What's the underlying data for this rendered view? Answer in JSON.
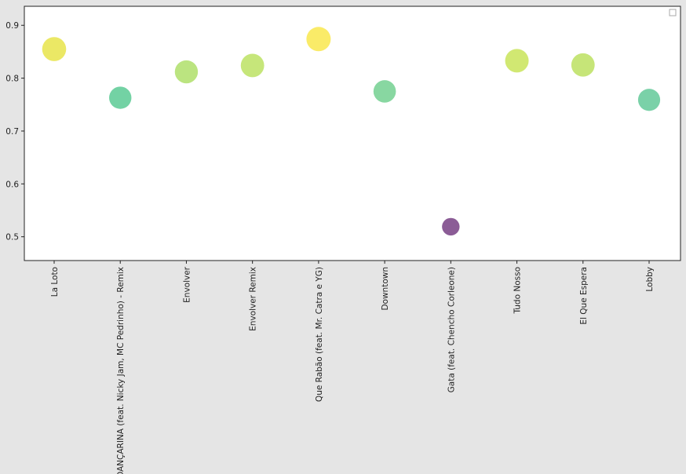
{
  "chart_data": {
    "type": "scatter",
    "title": "",
    "xlabel": "",
    "ylabel": "",
    "categories": [
      "La Loto",
      "DANÇARINA (feat. Nicky Jam, MC Pedrinho) - Remix",
      "Envolver",
      "Envolver Remix",
      "Que Rabão (feat. Mr. Catra e YG)",
      "Downtown",
      "Gata (feat. Chencho Corleone)",
      "Tudo Nosso",
      "El Que Espera",
      "Lobby"
    ],
    "values": [
      0.855,
      0.763,
      0.812,
      0.824,
      0.874,
      0.775,
      0.519,
      0.833,
      0.825,
      0.759
    ],
    "colors": [
      "#e5e23a",
      "#4cc58a",
      "#a8dc5c",
      "#b6df54",
      "#f8e63e",
      "#66cc86",
      "#6a2e78",
      "#c4e24a",
      "#b6de52",
      "#55c490"
    ],
    "yticks": [
      "0.5",
      "0.6",
      "0.7",
      "0.8",
      "0.9"
    ],
    "ylim": [
      0.455,
      0.936
    ],
    "grid": false,
    "legend": {
      "placement": "top-right",
      "entries": []
    }
  }
}
